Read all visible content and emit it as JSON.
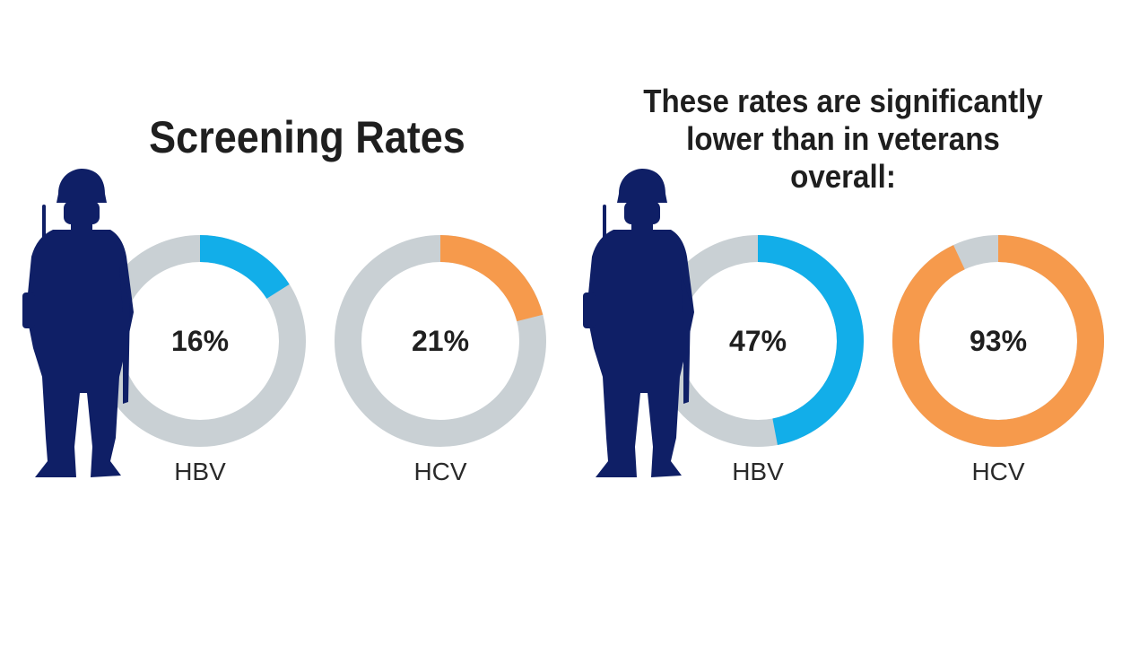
{
  "headings": {
    "left": "Screening Rates",
    "right_line1": "These rates are significantly",
    "right_line2": "lower than in veterans overall:"
  },
  "colors": {
    "track": "#c9d0d4",
    "hbv": "#12aee9",
    "hcv": "#f69a4c",
    "soldier": "#0f1f66"
  },
  "chart_data": [
    {
      "type": "pie",
      "title": "",
      "category": "HBV",
      "value": 16,
      "label": "16%",
      "color": "#12aee9"
    },
    {
      "type": "pie",
      "title": "",
      "category": "HCV",
      "value": 21,
      "label": "21%",
      "color": "#f69a4c"
    },
    {
      "type": "pie",
      "title": "",
      "category": "HBV",
      "value": 47,
      "label": "47%",
      "color": "#12aee9"
    },
    {
      "type": "pie",
      "title": "",
      "category": "HCV",
      "value": 93,
      "label": "93%",
      "color": "#f69a4c"
    }
  ]
}
